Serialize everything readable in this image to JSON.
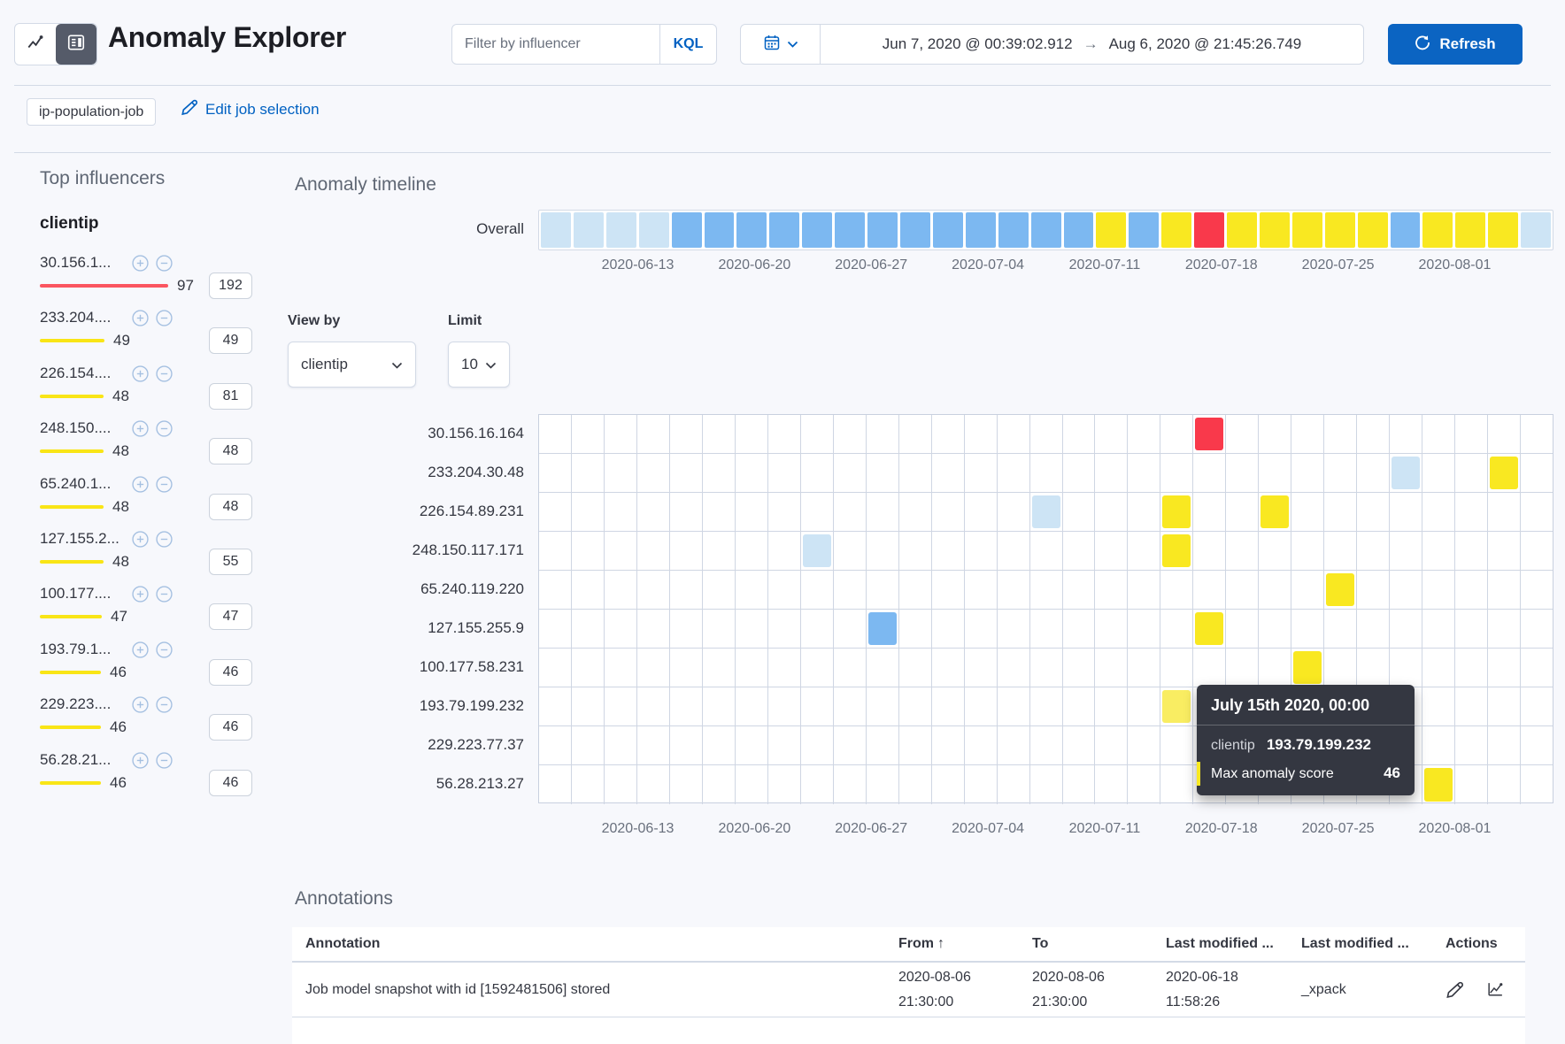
{
  "header": {
    "title": "Anomaly Explorer",
    "filter_input": {
      "placeholder": "Filter by influencer"
    },
    "kql_label": "KQL",
    "datepicker": {
      "start": "Jun 7, 2020 @ 00:39:02.912",
      "arrow": "→",
      "end": "Aug 6, 2020 @ 21:45:26.749"
    },
    "refresh_label": "Refresh"
  },
  "job_bar": {
    "job_badge": "ip-population-job",
    "edit_link_label": "Edit job selection"
  },
  "influencers": {
    "section_title": "Top influencers",
    "field_name": "clientip",
    "items": [
      {
        "label": "30.156.1...",
        "score": 97,
        "severity": "critical",
        "badge": "192"
      },
      {
        "label": "233.204....",
        "score": 49,
        "severity": "minor",
        "badge": "49"
      },
      {
        "label": "226.154....",
        "score": 48,
        "severity": "minor",
        "badge": "81"
      },
      {
        "label": "248.150....",
        "score": 48,
        "severity": "minor",
        "badge": "48"
      },
      {
        "label": "65.240.1...",
        "score": 48,
        "severity": "minor",
        "badge": "48"
      },
      {
        "label": "127.155.2...",
        "score": 48,
        "severity": "minor",
        "badge": "55"
      },
      {
        "label": "100.177....",
        "score": 47,
        "severity": "minor",
        "badge": "47"
      },
      {
        "label": "193.79.1...",
        "score": 46,
        "severity": "minor",
        "badge": "46"
      },
      {
        "label": "229.223....",
        "score": 46,
        "severity": "minor",
        "badge": "46"
      },
      {
        "label": "56.28.21...",
        "score": 46,
        "severity": "minor",
        "badge": "46"
      }
    ]
  },
  "timeline": {
    "section_title": "Anomaly timeline",
    "overall_label": "Overall",
    "view_by": {
      "label": "View by",
      "value": "clientip"
    },
    "limit": {
      "label": "Limit",
      "value": "10"
    },
    "columns": 31,
    "axis_labels": [
      "2020-06-13",
      "2020-06-20",
      "2020-06-27",
      "2020-07-04",
      "2020-07-11",
      "2020-07-18",
      "2020-07-25",
      "2020-08-01"
    ],
    "overall_cells": [
      "low",
      "low",
      "low",
      "low",
      "warning",
      "warning",
      "warning",
      "warning",
      "warning",
      "warning",
      "warning",
      "warning",
      "warning",
      "warning",
      "warning",
      "warning",
      "warning",
      "minor",
      "warning",
      "minor",
      "critical",
      "minor",
      "minor",
      "minor",
      "minor",
      "minor",
      "warning",
      "minor",
      "minor",
      "minor",
      "low"
    ],
    "rows": [
      {
        "label": "30.156.16.164",
        "cells": [
          {
            "col": 21,
            "severity": "critical"
          }
        ]
      },
      {
        "label": "233.204.30.48",
        "cells": [
          {
            "col": 27,
            "severity": "low"
          },
          {
            "col": 30,
            "severity": "minor"
          }
        ]
      },
      {
        "label": "226.154.89.231",
        "cells": [
          {
            "col": 16,
            "severity": "low"
          },
          {
            "col": 20,
            "severity": "minor"
          },
          {
            "col": 23,
            "severity": "minor"
          }
        ]
      },
      {
        "label": "248.150.117.171",
        "cells": [
          {
            "col": 9,
            "severity": "low"
          },
          {
            "col": 20,
            "severity": "minor"
          }
        ]
      },
      {
        "label": "65.240.119.220",
        "cells": [
          {
            "col": 25,
            "severity": "minor"
          }
        ]
      },
      {
        "label": "127.155.255.9",
        "cells": [
          {
            "col": 11,
            "severity": "warning"
          },
          {
            "col": 21,
            "severity": "minor"
          }
        ]
      },
      {
        "label": "100.177.58.231",
        "cells": [
          {
            "col": 24,
            "severity": "minor"
          }
        ]
      },
      {
        "label": "193.79.199.232",
        "cells": [
          {
            "col": 20,
            "severity": "minor",
            "hovered": true
          }
        ]
      },
      {
        "label": "229.223.77.37",
        "cells": []
      },
      {
        "label": "56.28.213.27",
        "cells": [
          {
            "col": 28,
            "severity": "minor"
          }
        ]
      }
    ]
  },
  "severity_colors": {
    "low": "#CDE4F5",
    "warning": "#7CB8F1",
    "minor": "#F9E821",
    "critical": "#F9394B",
    "minor_hovered": "#F9ED62",
    "bar_critical": "#FB5560",
    "bar_minor": "#F9E516"
  },
  "tooltip": {
    "title": "July 15th 2020, 00:00",
    "influencer_label": "clientip",
    "influencer_value": "193.79.199.232",
    "score_label": "Max anomaly score",
    "score_value": "46"
  },
  "annotations": {
    "section_title": "Annotations",
    "headers": {
      "annotation": "Annotation",
      "from": "From",
      "sort_arrow": "↑",
      "to": "To",
      "last_modified_date": "Last modified ...",
      "last_modified_by": "Last modified ...",
      "actions": "Actions"
    },
    "rows": [
      {
        "annotation": "Job model snapshot with id [1592481506] stored",
        "from_date": "2020-08-06",
        "from_time": "21:30:00",
        "to_date": "2020-08-06",
        "to_time": "21:30:00",
        "modified_date": "2020-06-18",
        "modified_time": "11:58:26",
        "modified_by": "_xpack"
      }
    ]
  }
}
